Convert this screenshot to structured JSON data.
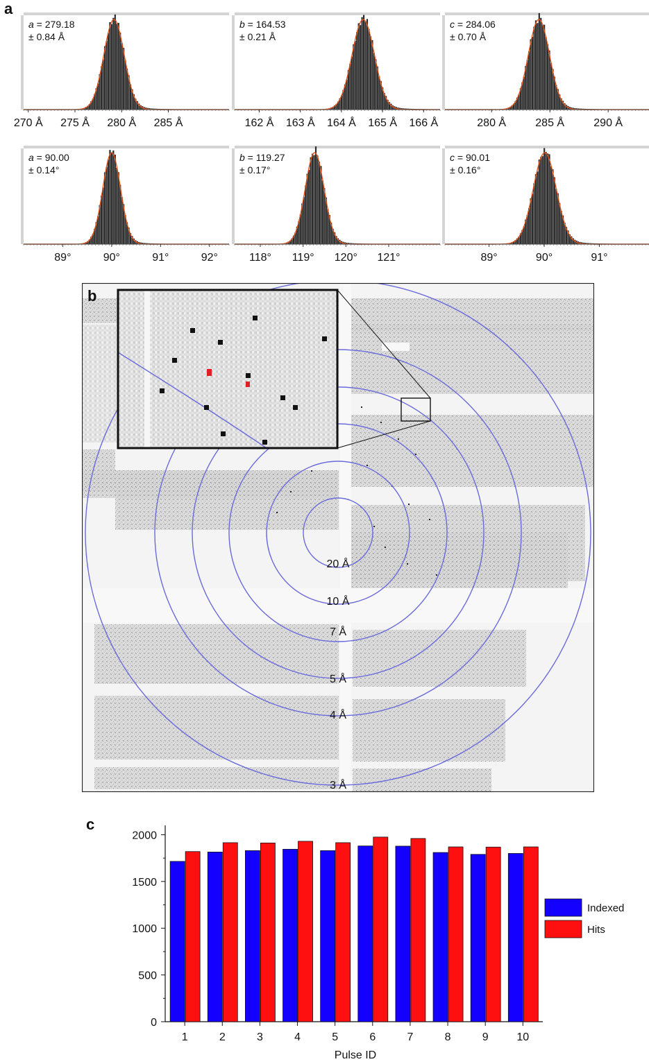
{
  "panels": {
    "a": "a",
    "b": "b",
    "c": "c"
  },
  "chart_data": [
    {
      "type": "histogram",
      "panel": "a",
      "label_var": "a",
      "label_value": "= 279.18",
      "label_err": "± 0.84 Å",
      "xlim": [
        269.5,
        291.5
      ],
      "center": 279.18,
      "sigma": 0.84,
      "ticks": [
        270,
        275,
        280,
        285
      ],
      "tick_labels": [
        "270 Å",
        "275 Å",
        "280 Å",
        "285 Å"
      ]
    },
    {
      "type": "histogram",
      "panel": "a",
      "label_var": "b",
      "label_value": "= 164.53",
      "label_err": "± 0.21 Å",
      "xlim": [
        161.4,
        166.4
      ],
      "center": 164.53,
      "sigma": 0.21,
      "ticks": [
        162,
        163,
        164,
        165,
        166
      ],
      "tick_labels": [
        "162 Å",
        "163 Å",
        "164 Å",
        "165 Å",
        "166 Å"
      ]
    },
    {
      "type": "histogram",
      "panel": "a",
      "label_var": "c",
      "label_value": "= 284.06",
      "label_err": "± 0.70 Å",
      "xlim": [
        276,
        293.5
      ],
      "center": 284.06,
      "sigma": 0.7,
      "ticks": [
        280,
        285,
        290
      ],
      "tick_labels": [
        "280 Å",
        "285 Å",
        "290 Å"
      ]
    },
    {
      "type": "histogram",
      "panel": "a",
      "label_var": "a",
      "label_value": "= 90.00",
      "label_err": "± 0.14°",
      "xlim": [
        88.2,
        92.4
      ],
      "center": 90.0,
      "sigma": 0.14,
      "ticks": [
        89,
        90,
        91,
        92
      ],
      "tick_labels": [
        "89°",
        "90°",
        "91°",
        "92°"
      ]
    },
    {
      "type": "histogram",
      "panel": "a",
      "label_var": "b",
      "label_value": "= 119.27",
      "label_err": "± 0.17°",
      "xlim": [
        117.4,
        122.2
      ],
      "center": 119.27,
      "sigma": 0.17,
      "ticks": [
        118,
        119,
        120,
        121
      ],
      "tick_labels": [
        "118°",
        "119°",
        "120°",
        "121°"
      ]
    },
    {
      "type": "histogram",
      "panel": "a",
      "label_var": "c",
      "label_value": "= 90.01",
      "label_err": "± 0.16°",
      "xlim": [
        88.2,
        91.9
      ],
      "center": 90.01,
      "sigma": 0.16,
      "ticks": [
        89,
        90,
        91
      ],
      "tick_labels": [
        "89°",
        "90°",
        "91°"
      ]
    },
    {
      "type": "bar",
      "panel": "c",
      "xlabel": "Pulse ID",
      "categories": [
        "1",
        "2",
        "3",
        "4",
        "5",
        "6",
        "7",
        "8",
        "9",
        "10"
      ],
      "ylim": [
        0,
        2100
      ],
      "yticks": [
        0,
        500,
        1000,
        1500,
        2000
      ],
      "series": [
        {
          "name": "Indexed",
          "color": "#1400ff",
          "values": [
            1715,
            1815,
            1830,
            1845,
            1830,
            1880,
            1878,
            1810,
            1790,
            1800
          ]
        },
        {
          "name": "Hits",
          "color": "#ff1010",
          "values": [
            1820,
            1915,
            1912,
            1930,
            1915,
            1975,
            1960,
            1870,
            1868,
            1870
          ]
        }
      ]
    }
  ],
  "diffraction_image": {
    "ring_labels": [
      "20 Å",
      "10 Å",
      "7 Å",
      "5 Å",
      "4 Å",
      "3 Å"
    ],
    "ring_color": "#6a6adc"
  }
}
